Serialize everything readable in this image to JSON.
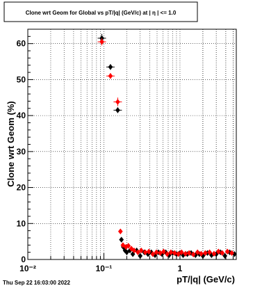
{
  "chart_data": {
    "type": "scatter",
    "title": "Clone wrt Geom for Global vs pT/|q| (GeV/c) at |  η | <= 1.0",
    "xlabel": "pT/|q| (GeV/c)",
    "ylabel": "Clone wrt Geom (%)",
    "x_scale": "log",
    "xlim": [
      0.01,
      5.5
    ],
    "ylim": [
      0,
      64
    ],
    "x_ticks": [
      {
        "value": 0.01,
        "label": "10⁻²"
      },
      {
        "value": 0.1,
        "label": "10⁻¹"
      },
      {
        "value": 1,
        "label": "1"
      }
    ],
    "y_ticks": [
      0,
      10,
      20,
      30,
      40,
      50,
      60
    ],
    "grid": true,
    "series": [
      {
        "color": "#000000",
        "marker": "diamond",
        "points": [
          {
            "x": 0.094,
            "y": 61.5,
            "err": 1.2
          },
          {
            "x": 0.122,
            "y": 53.5,
            "err": 0.8
          },
          {
            "x": 0.152,
            "y": 41.5,
            "err": 0.8
          },
          {
            "x": 0.17,
            "y": 5.5
          },
          {
            "x": 0.18,
            "y": 3.5
          },
          {
            "x": 0.19,
            "y": 2.5
          },
          {
            "x": 0.2,
            "y": 2.0
          },
          {
            "x": 0.22,
            "y": 2.5
          },
          {
            "x": 0.24,
            "y": 1.5
          },
          {
            "x": 0.27,
            "y": 2.5
          },
          {
            "x": 0.3,
            "y": 1.0
          },
          {
            "x": 0.34,
            "y": 2.0
          },
          {
            "x": 0.38,
            "y": 1.5
          },
          {
            "x": 0.42,
            "y": 2.0
          },
          {
            "x": 0.47,
            "y": 1.2
          },
          {
            "x": 0.52,
            "y": 2.0
          },
          {
            "x": 0.58,
            "y": 1.5
          },
          {
            "x": 0.65,
            "y": 2.0
          },
          {
            "x": 0.72,
            "y": 1.2
          },
          {
            "x": 0.8,
            "y": 1.8
          },
          {
            "x": 0.9,
            "y": 1.5
          },
          {
            "x": 1.0,
            "y": 1.8
          },
          {
            "x": 1.1,
            "y": 1.2
          },
          {
            "x": 1.25,
            "y": 1.5
          },
          {
            "x": 1.4,
            "y": 1.8
          },
          {
            "x": 1.6,
            "y": 1.2
          },
          {
            "x": 1.8,
            "y": 1.5
          },
          {
            "x": 2.0,
            "y": 1.0
          },
          {
            "x": 2.3,
            "y": 1.8
          },
          {
            "x": 2.6,
            "y": 1.2
          },
          {
            "x": 3.0,
            "y": 1.5
          },
          {
            "x": 3.4,
            "y": 2.0
          },
          {
            "x": 3.9,
            "y": 1.0
          },
          {
            "x": 4.5,
            "y": 2.0
          },
          {
            "x": 5.2,
            "y": 1.5
          }
        ]
      },
      {
        "color": "#ff0000",
        "marker": "diamond",
        "points": [
          {
            "x": 0.094,
            "y": 60.5,
            "err": 1.0
          },
          {
            "x": 0.122,
            "y": 51.0,
            "err": 0.8
          },
          {
            "x": 0.152,
            "y": 43.8,
            "err": 1.2
          },
          {
            "x": 0.165,
            "y": 7.8
          },
          {
            "x": 0.178,
            "y": 4.0
          },
          {
            "x": 0.195,
            "y": 3.5
          },
          {
            "x": 0.21,
            "y": 3.8
          },
          {
            "x": 0.23,
            "y": 3.0
          },
          {
            "x": 0.25,
            "y": 2.5
          },
          {
            "x": 0.28,
            "y": 2.0
          },
          {
            "x": 0.31,
            "y": 2.5
          },
          {
            "x": 0.35,
            "y": 2.0
          },
          {
            "x": 0.39,
            "y": 2.2
          },
          {
            "x": 0.44,
            "y": 1.5
          },
          {
            "x": 0.49,
            "y": 2.0
          },
          {
            "x": 0.55,
            "y": 1.8
          },
          {
            "x": 0.61,
            "y": 2.2
          },
          {
            "x": 0.68,
            "y": 1.5
          },
          {
            "x": 0.76,
            "y": 2.0
          },
          {
            "x": 0.85,
            "y": 1.8
          },
          {
            "x": 0.95,
            "y": 1.5
          },
          {
            "x": 1.05,
            "y": 2.0
          },
          {
            "x": 1.18,
            "y": 1.6
          },
          {
            "x": 1.32,
            "y": 1.8
          },
          {
            "x": 1.5,
            "y": 1.4
          },
          {
            "x": 1.7,
            "y": 2.0
          },
          {
            "x": 1.9,
            "y": 1.6
          },
          {
            "x": 2.15,
            "y": 1.8
          },
          {
            "x": 2.45,
            "y": 2.0
          },
          {
            "x": 2.8,
            "y": 1.6
          },
          {
            "x": 3.2,
            "y": 2.2
          },
          {
            "x": 3.6,
            "y": 1.8
          },
          {
            "x": 4.2,
            "y": 2.2
          },
          {
            "x": 4.8,
            "y": 1.8
          }
        ]
      }
    ]
  },
  "footer": {
    "timestamp": "Thu Sep 22 16:03:00 2022"
  }
}
